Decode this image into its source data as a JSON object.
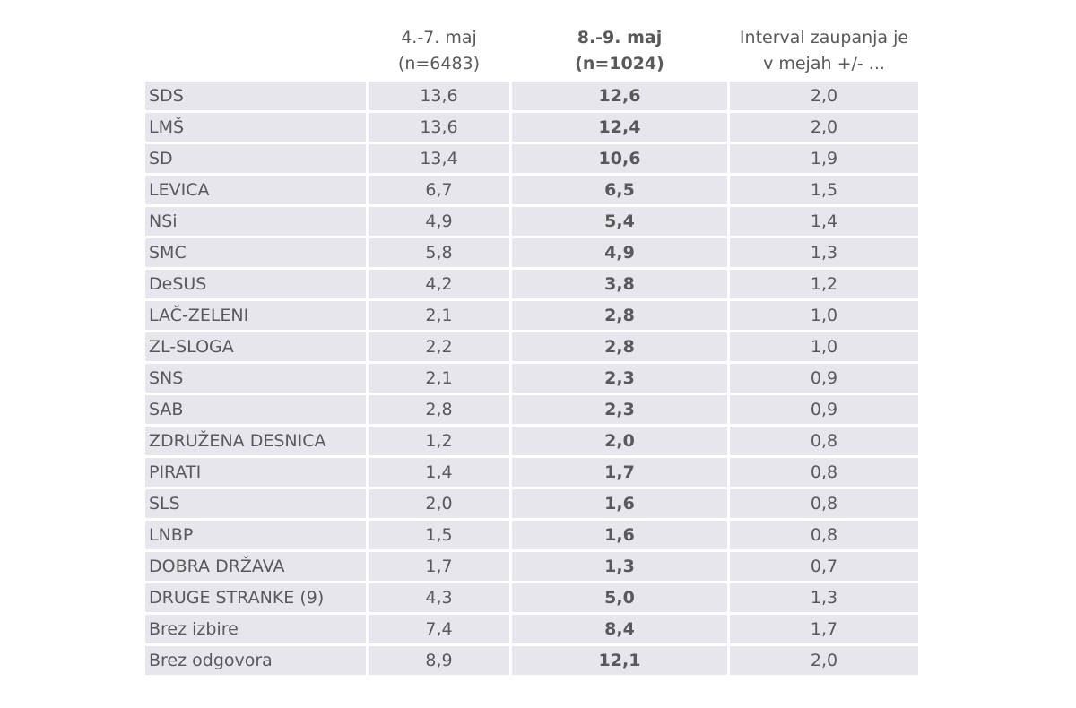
{
  "header": {
    "col1_line1": "4.-7. maj",
    "col1_line2": "(n=6483)",
    "col2_line1": "8.-9. maj",
    "col2_line2": "(n=1024)",
    "col3_line1": "Interval zaupanja je",
    "col3_line2": "v mejah +/- ..."
  },
  "rows": [
    {
      "party": "SDS",
      "a": "13,6",
      "b": "12,6",
      "c": "2,0"
    },
    {
      "party": "LMŠ",
      "a": "13,6",
      "b": "12,4",
      "c": "2,0"
    },
    {
      "party": "SD",
      "a": "13,4",
      "b": "10,6",
      "c": "1,9"
    },
    {
      "party": "LEVICA",
      "a": "6,7",
      "b": "6,5",
      "c": "1,5"
    },
    {
      "party": "NSi",
      "a": "4,9",
      "b": "5,4",
      "c": "1,4"
    },
    {
      "party": "SMC",
      "a": "5,8",
      "b": "4,9",
      "c": "1,3"
    },
    {
      "party": "DeSUS",
      "a": "4,2",
      "b": "3,8",
      "c": "1,2"
    },
    {
      "party": "LAČ-ZELENI",
      "a": "2,1",
      "b": "2,8",
      "c": "1,0"
    },
    {
      "party": "ZL-SLOGA",
      "a": "2,2",
      "b": "2,8",
      "c": "1,0"
    },
    {
      "party": "SNS",
      "a": "2,1",
      "b": "2,3",
      "c": "0,9"
    },
    {
      "party": "SAB",
      "a": "2,8",
      "b": "2,3",
      "c": "0,9"
    },
    {
      "party": "ZDRUŽENA DESNICA",
      "a": "1,2",
      "b": "2,0",
      "c": "0,8"
    },
    {
      "party": "PIRATI",
      "a": "1,4",
      "b": "1,7",
      "c": "0,8"
    },
    {
      "party": "SLS",
      "a": "2,0",
      "b": "1,6",
      "c": "0,8"
    },
    {
      "party": "LNBP",
      "a": "1,5",
      "b": "1,6",
      "c": "0,8"
    },
    {
      "party": "DOBRA DRŽAVA",
      "a": "1,7",
      "b": "1,3",
      "c": "0,7"
    },
    {
      "party": "DRUGE STRANKE (9)",
      "a": "4,3",
      "b": "5,0",
      "c": "1,3"
    },
    {
      "party": "Brez izbire",
      "a": "7,4",
      "b": "8,4",
      "c": "1,7"
    },
    {
      "party": "Brez odgovora",
      "a": "8,9",
      "b": "12,1",
      "c": "2,0"
    }
  ],
  "colors": {
    "row_background": "#e7e6ec",
    "text": "#595959"
  }
}
